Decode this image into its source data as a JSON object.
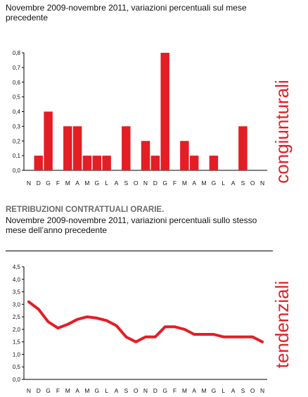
{
  "chart1_heading": "",
  "chart1_subtitle": "Novembre 2009-novembre 2011, variazioni percentuali sul mese precedente",
  "chart2_heading": "RETRIBUZIONI CONTRATTUALI ORARIE.",
  "chart2_subtitle": "Novembre 2009-novembre 2011, variazioni percentuali sullo stesso mese dell’anno precedente",
  "colors": {
    "series": "#e31e24",
    "vertical_label": "#e31e24"
  },
  "chart_data": [
    {
      "type": "bar",
      "vertical_label": "congiunturali",
      "categories": [
        "N",
        "D",
        "G",
        "F",
        "M",
        "A",
        "M",
        "G",
        "L",
        "A",
        "S",
        "O",
        "N",
        "D",
        "G",
        "F",
        "M",
        "A",
        "M",
        "G",
        "L",
        "A",
        "S",
        "O",
        "N"
      ],
      "values": [
        0,
        0.1,
        0.4,
        0,
        0.3,
        0.3,
        0.1,
        0.1,
        0.1,
        0,
        0.3,
        0,
        0.2,
        0.1,
        0.8,
        0,
        0.2,
        0.1,
        0,
        0.1,
        0,
        0,
        0.3,
        0,
        0
      ],
      "ylim": [
        0,
        0.8
      ],
      "yticks": [
        "0,0",
        "0,1",
        "0,2",
        "0,3",
        "0,4",
        "0,5",
        "0,6",
        "0,7",
        "0,8"
      ],
      "grid": false
    },
    {
      "type": "line",
      "vertical_label": "tendenziali",
      "categories": [
        "N",
        "D",
        "G",
        "F",
        "M",
        "A",
        "M",
        "G",
        "L",
        "A",
        "S",
        "O",
        "N",
        "D",
        "G",
        "F",
        "M",
        "A",
        "M",
        "G",
        "L",
        "A",
        "S",
        "O",
        "N"
      ],
      "values": [
        3.1,
        2.8,
        2.3,
        2.05,
        2.2,
        2.4,
        2.5,
        2.45,
        2.35,
        2.15,
        1.7,
        1.5,
        1.7,
        1.7,
        2.1,
        2.1,
        2.0,
        1.8,
        1.8,
        1.8,
        1.7,
        1.7,
        1.7,
        1.7,
        1.5
      ],
      "ylim": [
        0,
        4.5
      ],
      "yticks": [
        "0,0",
        "0,5",
        "1,0",
        "1,5",
        "2,0",
        "2,5",
        "3,0",
        "3,5",
        "4,0",
        "4,5"
      ],
      "grid": false
    }
  ]
}
